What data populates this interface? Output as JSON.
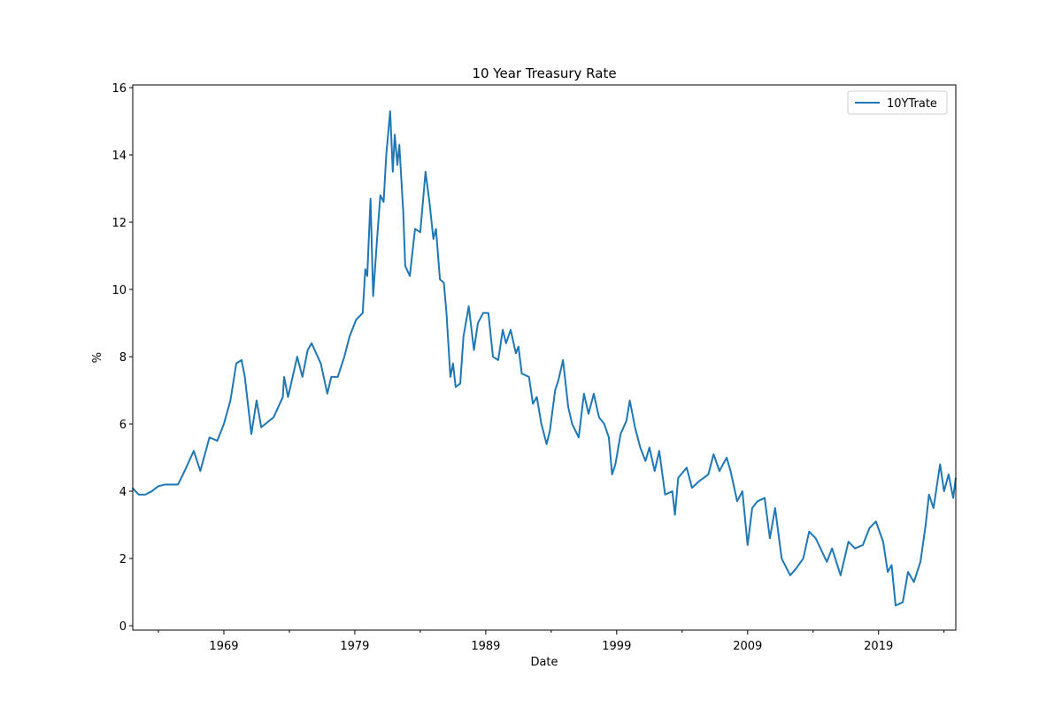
{
  "chart_data": {
    "type": "line",
    "title": "10 Year Treasury Rate",
    "xlabel": "Date",
    "ylabel": "%",
    "x": [
      1962.0,
      1962.5,
      1963.0,
      1963.5,
      1964.0,
      1964.5,
      1965.0,
      1965.5,
      1966.0,
      1966.7,
      1967.2,
      1967.9,
      1968.5,
      1969.0,
      1969.5,
      1969.95,
      1970.35,
      1970.6,
      1971.1,
      1971.5,
      1971.85,
      1972.8,
      1973.5,
      1973.6,
      1973.9,
      1974.6,
      1975.0,
      1975.4,
      1975.7,
      1976.4,
      1976.9,
      1977.2,
      1977.7,
      1978.2,
      1978.6,
      1979.1,
      1979.6,
      1979.8,
      1979.95,
      1980.2,
      1980.4,
      1980.7,
      1980.95,
      1981.2,
      1981.4,
      1981.7,
      1981.9,
      1982.05,
      1982.25,
      1982.4,
      1982.7,
      1982.85,
      1983.2,
      1983.6,
      1984.0,
      1984.4,
      1984.7,
      1985.0,
      1985.2,
      1985.5,
      1985.8,
      1986.0,
      1986.3,
      1986.5,
      1986.7,
      1987.05,
      1987.3,
      1987.7,
      1988.1,
      1988.4,
      1988.8,
      1989.2,
      1989.55,
      1989.95,
      1990.3,
      1990.55,
      1990.9,
      1991.3,
      1991.5,
      1991.75,
      1992.3,
      1992.6,
      1992.9,
      1993.25,
      1993.65,
      1993.9,
      1994.3,
      1994.55,
      1994.9,
      1995.3,
      1995.6,
      1996.1,
      1996.5,
      1996.85,
      1997.25,
      1997.65,
      1998.05,
      1998.4,
      1998.65,
      1998.9,
      1999.3,
      1999.75,
      2000.0,
      2000.4,
      2000.8,
      2001.2,
      2001.5,
      2001.9,
      2002.25,
      2002.7,
      2003.25,
      2003.45,
      2003.7,
      2004.35,
      2004.75,
      2005.3,
      2006.0,
      2006.4,
      2006.85,
      2007.4,
      2007.7,
      2008.2,
      2008.6,
      2009.0,
      2009.35,
      2009.75,
      2010.3,
      2010.7,
      2011.1,
      2011.6,
      2012.25,
      2012.7,
      2013.25,
      2013.7,
      2014.2,
      2015.05,
      2015.45,
      2016.1,
      2016.7,
      2017.2,
      2017.8,
      2018.3,
      2018.8,
      2019.35,
      2019.7,
      2020.0,
      2020.3,
      2020.85,
      2021.25,
      2021.7,
      2022.2,
      2022.6,
      2022.85,
      2023.2,
      2023.7,
      2024.0,
      2024.35,
      2024.7,
      2024.9
    ],
    "series": [
      {
        "name": "10YTrate",
        "color": "#1f77b4",
        "values": [
          4.1,
          3.9,
          3.9,
          4.0,
          4.15,
          4.2,
          4.2,
          4.2,
          4.6,
          5.2,
          4.6,
          5.6,
          5.5,
          6.0,
          6.7,
          7.8,
          7.9,
          7.4,
          5.7,
          6.7,
          5.9,
          6.2,
          6.8,
          7.4,
          6.8,
          8.0,
          7.4,
          8.2,
          8.4,
          7.8,
          6.9,
          7.4,
          7.4,
          8.0,
          8.6,
          9.1,
          9.3,
          10.6,
          10.4,
          12.7,
          9.8,
          11.5,
          12.8,
          12.6,
          14.0,
          15.3,
          13.5,
          14.6,
          13.7,
          14.3,
          12.3,
          10.7,
          10.4,
          11.8,
          11.7,
          13.5,
          12.6,
          11.5,
          11.8,
          10.3,
          10.2,
          9.3,
          7.4,
          7.8,
          7.1,
          7.2,
          8.6,
          9.5,
          8.2,
          9.0,
          9.3,
          9.3,
          8.0,
          7.9,
          8.8,
          8.4,
          8.8,
          8.1,
          8.3,
          7.5,
          7.4,
          6.6,
          6.8,
          6.0,
          5.4,
          5.8,
          7.0,
          7.3,
          7.9,
          6.5,
          6.0,
          5.6,
          6.9,
          6.3,
          6.9,
          6.2,
          6.0,
          5.6,
          4.5,
          4.8,
          5.7,
          6.1,
          6.7,
          5.9,
          5.3,
          4.9,
          5.3,
          4.6,
          5.2,
          3.9,
          4.0,
          3.3,
          4.4,
          4.7,
          4.1,
          4.3,
          4.5,
          5.1,
          4.6,
          5.0,
          4.6,
          3.7,
          4.0,
          2.4,
          3.5,
          3.7,
          3.8,
          2.6,
          3.5,
          2.0,
          1.5,
          1.7,
          2.0,
          2.8,
          2.6,
          1.9,
          2.3,
          1.5,
          2.5,
          2.3,
          2.4,
          2.9,
          3.1,
          2.5,
          1.6,
          1.8,
          0.6,
          0.7,
          1.6,
          1.3,
          1.9,
          3.0,
          3.9,
          3.5,
          4.8,
          4.0,
          4.5,
          3.8,
          4.4
        ]
      }
    ],
    "xlim": [
      1962.04,
      2024.9
    ],
    "xticks": [
      1969,
      1979,
      1989,
      1999,
      2009,
      2019
    ],
    "xminorticks": [
      1964,
      1974,
      1984,
      1994,
      2004,
      2014,
      2024
    ],
    "ylim": [
      -0.13,
      16.08
    ],
    "yticks": [
      0,
      2,
      4,
      6,
      8,
      10,
      12,
      14,
      16
    ],
    "grid": false,
    "legend": "upper right"
  }
}
